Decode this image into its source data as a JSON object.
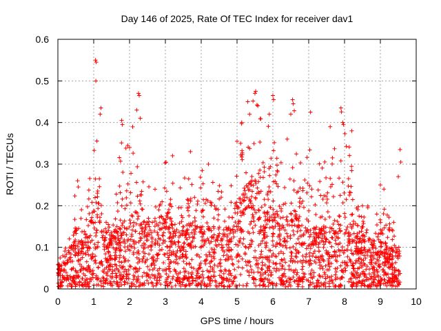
{
  "chart_data": {
    "type": "scatter",
    "title": "Day 146 of 2025, Rate Of TEC Index for receiver dav1",
    "xlabel": "GPS time / hours",
    "ylabel": "ROTI / TECUs",
    "xlim": [
      0,
      10
    ],
    "ylim": [
      0,
      0.6
    ],
    "xticks": [
      0,
      1,
      2,
      3,
      4,
      5,
      6,
      7,
      8,
      9,
      10
    ],
    "yticks": [
      0,
      0.1,
      0.2,
      0.3,
      0.4,
      0.5,
      0.6
    ],
    "xtick_labels": [
      "0",
      "1",
      "2",
      "3",
      "4",
      "5",
      "6",
      "7",
      "8",
      "9",
      "10"
    ],
    "ytick_labels": [
      "0",
      "0.1",
      "0.2",
      "0.3",
      "0.4",
      "0.5",
      "0.6"
    ],
    "grid": true,
    "marker": "+",
    "series": [
      {
        "name": "ROTI",
        "color": "#ff0000",
        "envelope": {
          "x": [
            0.0,
            0.2,
            0.4,
            0.5,
            0.6,
            0.8,
            0.9,
            1.0,
            1.05,
            1.1,
            1.2,
            1.3,
            1.5,
            1.8,
            2.0,
            2.2,
            2.3,
            2.5,
            2.7,
            3.0,
            3.2,
            3.4,
            3.7,
            4.0,
            4.2,
            4.5,
            4.8,
            5.0,
            5.2,
            5.4,
            5.5,
            5.6,
            5.8,
            6.0,
            6.2,
            6.4,
            6.6,
            6.8,
            7.0,
            7.2,
            7.5,
            7.7,
            7.9,
            8.1,
            8.3,
            8.6,
            8.9,
            9.1,
            9.3,
            9.5,
            9.55
          ],
          "peak": [
            0.08,
            0.1,
            0.14,
            0.26,
            0.2,
            0.17,
            0.3,
            0.4,
            0.55,
            0.43,
            0.3,
            0.22,
            0.18,
            0.41,
            0.35,
            0.47,
            0.33,
            0.28,
            0.25,
            0.32,
            0.26,
            0.25,
            0.29,
            0.3,
            0.28,
            0.25,
            0.27,
            0.42,
            0.45,
            0.44,
            0.48,
            0.44,
            0.38,
            0.46,
            0.33,
            0.36,
            0.45,
            0.3,
            0.43,
            0.3,
            0.32,
            0.4,
            0.44,
            0.39,
            0.2,
            0.21,
            0.18,
            0.25,
            0.2,
            0.34,
            0.34
          ],
          "typical": [
            0.03,
            0.05,
            0.07,
            0.09,
            0.08,
            0.08,
            0.1,
            0.14,
            0.18,
            0.15,
            0.1,
            0.08,
            0.08,
            0.1,
            0.1,
            0.12,
            0.1,
            0.1,
            0.1,
            0.12,
            0.1,
            0.09,
            0.1,
            0.09,
            0.1,
            0.09,
            0.09,
            0.14,
            0.15,
            0.16,
            0.17,
            0.15,
            0.12,
            0.13,
            0.11,
            0.11,
            0.12,
            0.1,
            0.1,
            0.09,
            0.09,
            0.1,
            0.11,
            0.1,
            0.08,
            0.08,
            0.07,
            0.07,
            0.06,
            0.06,
            0.06
          ]
        },
        "time_range": [
          0,
          9.55
        ],
        "n_points": 2600,
        "notable_points": [
          [
            1.05,
            0.55
          ],
          [
            1.07,
            0.545
          ],
          [
            1.06,
            0.5
          ],
          [
            1.2,
            0.435
          ],
          [
            1.18,
            0.42
          ],
          [
            1.78,
            0.405
          ],
          [
            1.8,
            0.395
          ],
          [
            2.25,
            0.47
          ],
          [
            2.27,
            0.465
          ],
          [
            2.2,
            0.43
          ],
          [
            2.3,
            0.41
          ],
          [
            2.0,
            0.34
          ],
          [
            1.95,
            0.345
          ],
          [
            3.2,
            0.32
          ],
          [
            3.7,
            0.33
          ],
          [
            4.2,
            0.3
          ],
          [
            5.3,
            0.45
          ],
          [
            5.5,
            0.47
          ],
          [
            5.52,
            0.475
          ],
          [
            5.58,
            0.44
          ],
          [
            5.35,
            0.42
          ],
          [
            5.1,
            0.35
          ],
          [
            5.0,
            0.355
          ],
          [
            6.0,
            0.465
          ],
          [
            6.02,
            0.455
          ],
          [
            5.9,
            0.42
          ],
          [
            6.55,
            0.455
          ],
          [
            6.57,
            0.445
          ],
          [
            6.5,
            0.42
          ],
          [
            6.4,
            0.36
          ],
          [
            7.05,
            0.425
          ],
          [
            7.9,
            0.435
          ],
          [
            7.95,
            0.4
          ],
          [
            7.97,
            0.395
          ],
          [
            8.2,
            0.38
          ],
          [
            7.6,
            0.39
          ],
          [
            0.55,
            0.26
          ],
          [
            0.57,
            0.245
          ],
          [
            9.55,
            0.335
          ],
          [
            9.57,
            0.305
          ],
          [
            9.5,
            0.27
          ],
          [
            9.0,
            0.25
          ],
          [
            9.1,
            0.24
          ],
          [
            8.5,
            0.2
          ],
          [
            8.9,
            0.18
          ]
        ]
      }
    ]
  }
}
